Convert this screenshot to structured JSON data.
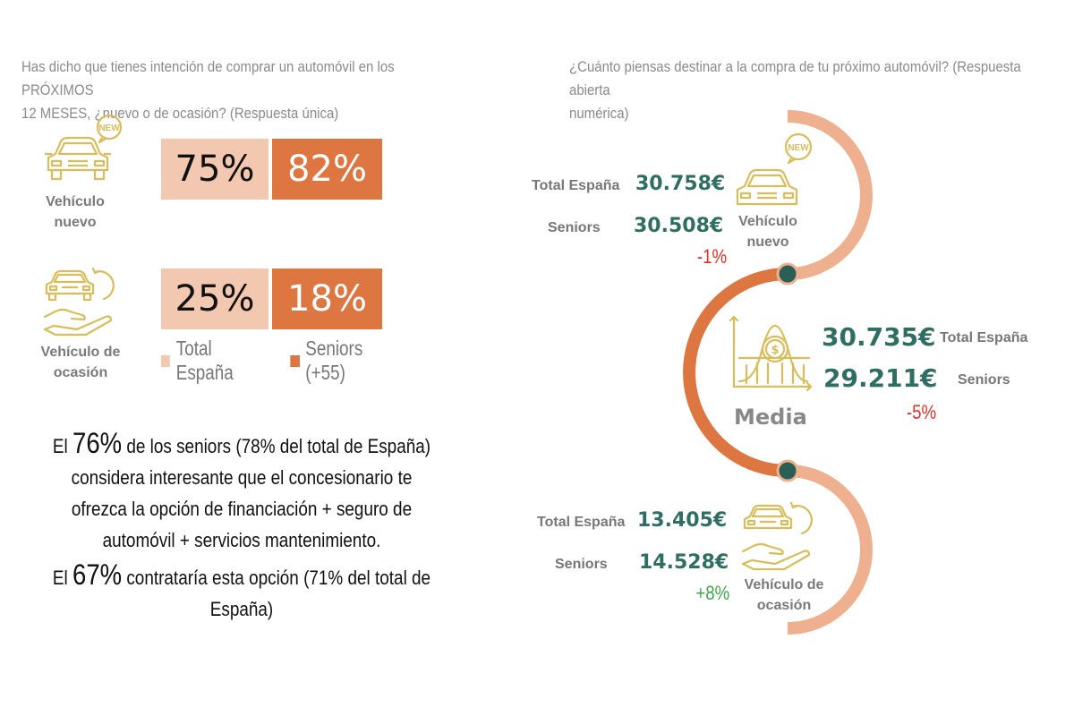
{
  "left": {
    "question": "Has dicho que tienes intención de comprar un automóvil en los PRÓXIMOS 12 MESES, ¿nuevo o de ocasión? (Respuesta única)",
    "question_lines": [
      "Has dicho que tienes intención de comprar un automóvil en los PRÓXIMOS",
      "12 MESES, ¿nuevo o de ocasión? (Respuesta única)"
    ],
    "categories": [
      {
        "label_lines": [
          "Vehículo",
          "nuevo"
        ],
        "total": "75%",
        "seniors": "82%"
      },
      {
        "label_lines": [
          "Vehículo de",
          "ocasión"
        ],
        "total": "25%",
        "seniors": "18%"
      }
    ],
    "legend": {
      "total": "Total España",
      "seniors": "Seniors (+55)"
    },
    "summary": {
      "l1_pre": "El ",
      "l1_big": "76%",
      "l1_post": " de los seniors (78% del total de España)",
      "l2": "considera interesante que el concesionario te",
      "l3": "ofrezca la opción de financiación + seguro de",
      "l4": "automóvil + servicios mantenimiento.",
      "l5_pre": "El ",
      "l5_big": "67%",
      "l5_post": " contrataría esta opción (71% del total de",
      "l6": "España)"
    },
    "badge_text": "NEW"
  },
  "right": {
    "question_lines": [
      "¿Cuánto piensas destinar a la compra de tu próximo automóvil? (Respuesta abierta",
      "numérica)"
    ],
    "nuevo": {
      "label_lines": [
        "Vehículo",
        "nuevo"
      ],
      "total_label": "Total España",
      "total_value": "30.758€",
      "seniors_label": "Seniors",
      "seniors_value": "30.508€",
      "change": "-1%"
    },
    "media": {
      "label": "Media",
      "total_label": "Total España",
      "total_value": "30.735€",
      "seniors_label": "Seniors",
      "seniors_value": "29.211€",
      "change": "-5%"
    },
    "ocasion": {
      "label_lines": [
        "Vehículo de",
        "ocasión"
      ],
      "total_label": "Total España",
      "total_value": "13.405€",
      "seniors_label": "Seniors",
      "seniors_value": "14.528€",
      "change": "+8%"
    },
    "badge_text": "NEW"
  },
  "colors": {
    "total": "#f2c9b0",
    "seniors": "#dd7640",
    "value_green": "#2f6e63",
    "negative": "#e0302a",
    "positive": "#3faa4a",
    "icon_gold": "#d9bd5a",
    "arc_light": "#eeb08e",
    "arc_dark": "#dd7640"
  },
  "chart_data": [
    {
      "type": "bar",
      "title": "Has dicho que tienes intención de comprar un automóvil en los PRÓXIMOS 12 MESES, ¿nuevo o de ocasión? (Respuesta única)",
      "categories": [
        "Vehículo nuevo",
        "Vehículo de ocasión"
      ],
      "series": [
        {
          "name": "Total España",
          "values": [
            75,
            25
          ]
        },
        {
          "name": "Seniors (+55)",
          "values": [
            82,
            18
          ]
        }
      ],
      "unit": "%"
    },
    {
      "type": "table",
      "title": "¿Cuánto piensas destinar a la compra de tu próximo automóvil? (Respuesta abierta numérica)",
      "rows": [
        "Vehículo nuevo",
        "Media",
        "Vehículo de ocasión"
      ],
      "series": [
        {
          "name": "Total España",
          "values": [
            30758,
            30735,
            13405
          ]
        },
        {
          "name": "Seniors",
          "values": [
            30508,
            29211,
            14528
          ]
        }
      ],
      "changes": [
        "-1%",
        "-5%",
        "+8%"
      ],
      "unit": "€"
    }
  ]
}
